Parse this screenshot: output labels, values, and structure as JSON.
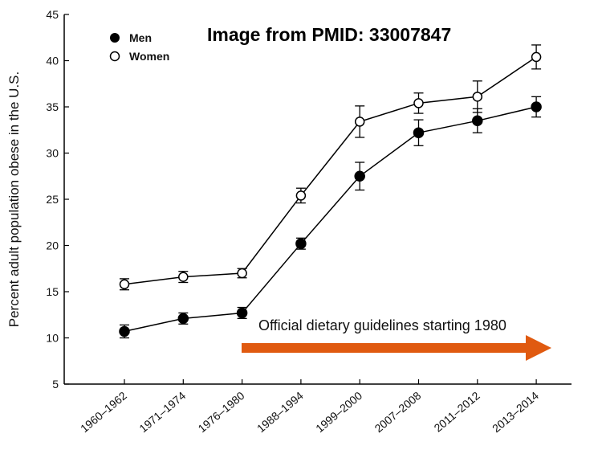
{
  "banner_text": "Image from PMID: 33007847",
  "annotation_text": "Official dietary guidelines starting 1980",
  "arrow_color": "#e05a10",
  "chart_data": {
    "type": "line",
    "ylabel": "Percent adult population obese in the U.S.",
    "ylim": [
      5,
      45
    ],
    "yticks": [
      5,
      10,
      15,
      20,
      25,
      30,
      35,
      40,
      45
    ],
    "categories": [
      "1960–1962",
      "1971–1974",
      "1976–1980",
      "1988–1994",
      "1999–2000",
      "2007–2008",
      "2011–2012",
      "2013–2014"
    ],
    "legend_position": "top-left",
    "grid": false,
    "series": [
      {
        "name": "Men",
        "marker": "filled-circle",
        "color": "#000000",
        "values": [
          10.7,
          12.1,
          12.7,
          20.2,
          27.5,
          32.2,
          33.5,
          35.0
        ],
        "error": [
          0.7,
          0.6,
          0.6,
          0.6,
          1.5,
          1.4,
          1.3,
          1.1
        ]
      },
      {
        "name": "Women",
        "marker": "open-circle",
        "color": "#000000",
        "values": [
          15.8,
          16.6,
          17.0,
          25.4,
          33.4,
          35.4,
          36.1,
          40.4
        ],
        "error": [
          0.6,
          0.6,
          0.5,
          0.8,
          1.7,
          1.1,
          1.7,
          1.3
        ]
      }
    ]
  }
}
